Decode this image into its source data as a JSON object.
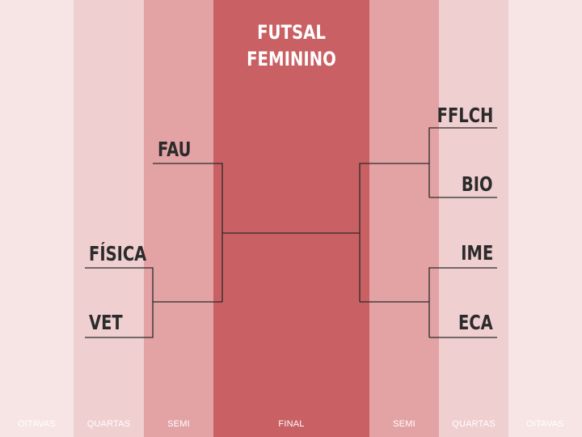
{
  "title": {
    "line1": "FUTSAL",
    "line2": "FEMININO"
  },
  "columns": {
    "left_oitavas": "OITAVAS",
    "left_quartas": "QUARTAS",
    "left_semi": "SEMI",
    "final": "FINAL",
    "right_semi": "SEMI",
    "right_quartas": "QUARTAS",
    "right_oitavas": "OITAVAS"
  },
  "colors": {
    "oitavas": "#f7e5e6",
    "quartas": "#f0cfd1",
    "semi": "#e3a3a5",
    "final": "#c96064",
    "line": "#2b2b2b",
    "team_text": "#2b2b2b"
  },
  "teams": {
    "left_semi": "FAU",
    "left_quartas_top": "FÍSICA",
    "left_quartas_bottom": "VET",
    "right_quartas_1": "FFLCH",
    "right_quartas_2": "BIO",
    "right_quartas_3": "IME",
    "right_quartas_4": "ECA"
  }
}
